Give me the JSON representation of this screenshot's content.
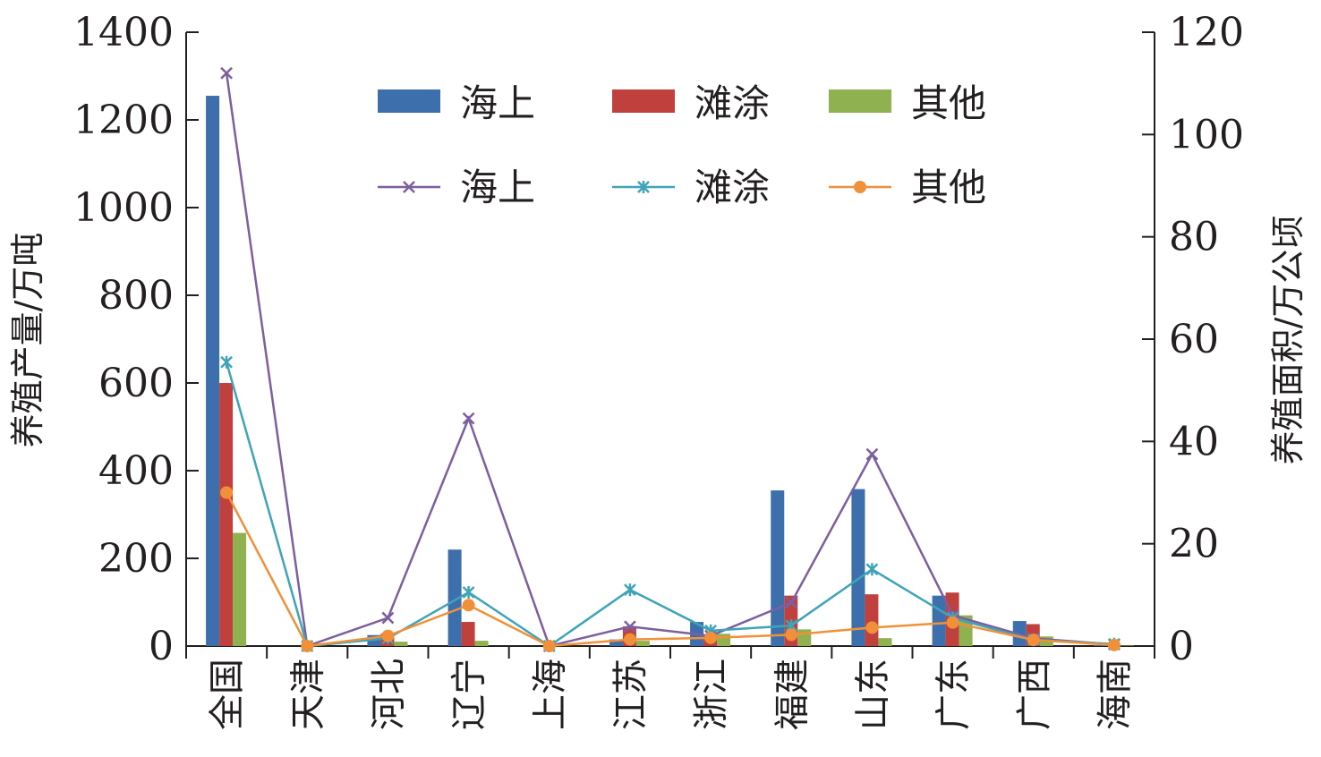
{
  "chart_data": {
    "type": "bar",
    "title": "",
    "categories": [
      "全国",
      "天津",
      "河北",
      "辽宁",
      "上海",
      "江苏",
      "浙江",
      "福建",
      "山东",
      "广东",
      "广西",
      "海南"
    ],
    "y_left": {
      "label": "养殖产量/万吨",
      "ylim": [
        0,
        1400
      ],
      "ticks": [
        "0",
        "200",
        "400",
        "600",
        "800",
        "1000",
        "1200",
        "1400"
      ]
    },
    "y_right": {
      "label": "养殖面积/万公顷",
      "ylim": [
        0,
        120
      ],
      "ticks": [
        "0",
        "20",
        "40",
        "60",
        "80",
        "100",
        "120"
      ]
    },
    "bar_series": [
      {
        "name": "海上",
        "color": "#3d6fad",
        "values": [
          1255,
          0,
          25,
          220,
          0,
          15,
          55,
          355,
          358,
          115,
          57,
          2
        ]
      },
      {
        "name": "滩涂",
        "color": "#c0403d",
        "values": [
          600,
          0,
          28,
          55,
          0,
          45,
          25,
          115,
          118,
          122,
          50,
          2
        ]
      },
      {
        "name": "其他",
        "color": "#8fb14f",
        "values": [
          258,
          0,
          10,
          12,
          0,
          12,
          28,
          38,
          18,
          70,
          22,
          1
        ]
      }
    ],
    "line_series": [
      {
        "name": "海上",
        "color": "#7d5fa0",
        "marker": "x",
        "values": [
          112,
          0,
          5.5,
          44.5,
          0,
          3.8,
          2,
          8.5,
          37.5,
          6,
          1.5,
          0.3
        ]
      },
      {
        "name": "滩涂",
        "color": "#3fa4b8",
        "marker": "star",
        "values": [
          55.5,
          0,
          1.5,
          10.5,
          0,
          11,
          3,
          4,
          15,
          5.5,
          1.2,
          0.4
        ]
      },
      {
        "name": "其他",
        "color": "#f0913a",
        "marker": "circle",
        "values": [
          30,
          0,
          2,
          8,
          0,
          1.3,
          1.6,
          2.2,
          3.6,
          4.6,
          1.2,
          0.2
        ]
      }
    ],
    "legend_position": "top-center",
    "grid": false
  }
}
